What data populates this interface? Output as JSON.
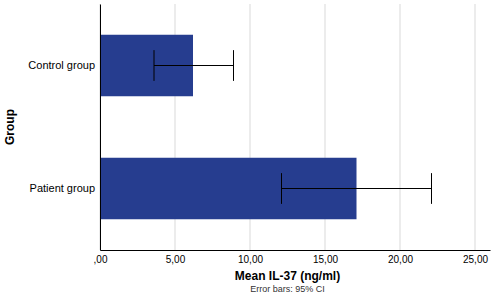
{
  "chart_data": {
    "type": "bar",
    "orientation": "horizontal",
    "categories": [
      "Control group",
      "Patient group"
    ],
    "values": [
      6.2,
      17.1
    ],
    "ci_lower": [
      3.6,
      12.1
    ],
    "ci_upper": [
      8.9,
      22.1
    ],
    "color": "#263d8f",
    "x_label": "Mean IL-37 (ng/ml)",
    "y_label": "Group",
    "note": "Error bars: 95% CI",
    "xlim": [
      0,
      26
    ],
    "xticks": [
      {
        "value": 0,
        "label": ",00"
      },
      {
        "value": 5,
        "label": "5,00"
      },
      {
        "value": 10,
        "label": "10,00"
      },
      {
        "value": 15,
        "label": "15,00"
      },
      {
        "value": 20,
        "label": "20,00"
      },
      {
        "value": 25,
        "label": "25,00"
      }
    ],
    "grid": true
  }
}
